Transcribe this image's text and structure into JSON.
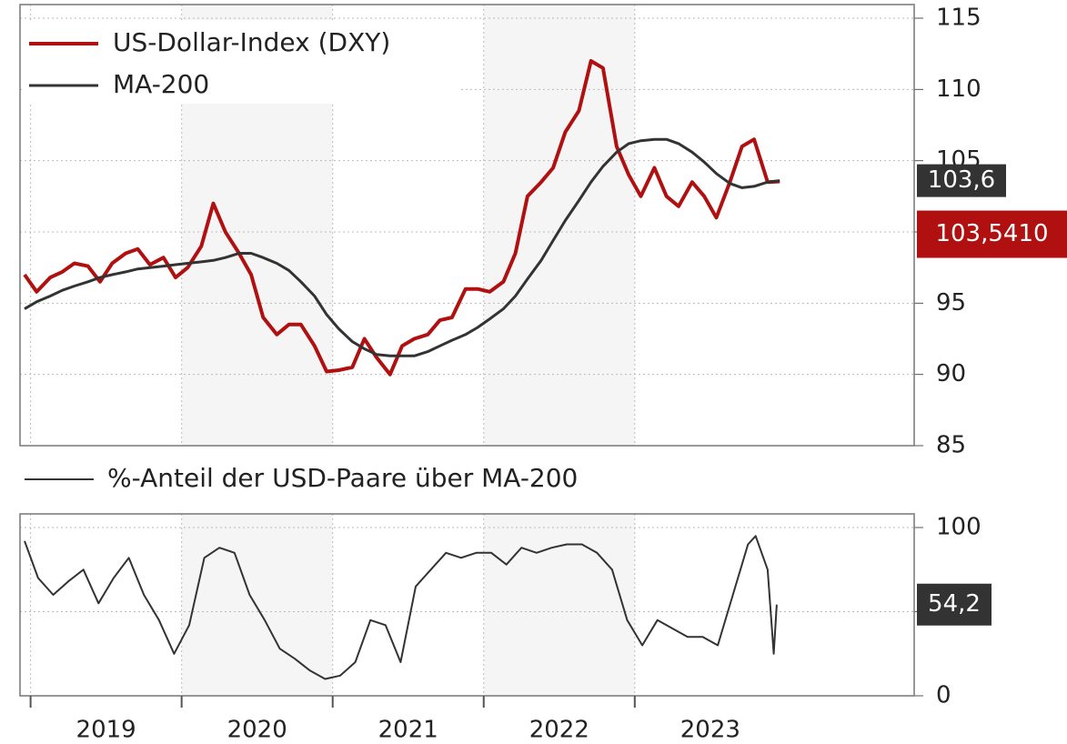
{
  "chart_data": [
    {
      "type": "line",
      "ylim": [
        85,
        115
      ],
      "yticks": [
        85,
        90,
        95,
        100,
        105,
        110,
        115
      ],
      "xlim": [
        2018.93,
        2024.85
      ],
      "grid": true,
      "legend": "upper left",
      "x": [
        2018.96,
        2019.04,
        2019.13,
        2019.21,
        2019.29,
        2019.38,
        2019.46,
        2019.54,
        2019.63,
        2019.71,
        2019.79,
        2019.88,
        2019.96,
        2020.04,
        2020.13,
        2020.21,
        2020.29,
        2020.38,
        2020.46,
        2020.54,
        2020.63,
        2020.71,
        2020.79,
        2020.88,
        2020.96,
        2021.04,
        2021.13,
        2021.21,
        2021.29,
        2021.38,
        2021.46,
        2021.54,
        2021.63,
        2021.71,
        2021.79,
        2021.88,
        2021.96,
        2022.04,
        2022.13,
        2022.21,
        2022.29,
        2022.38,
        2022.46,
        2022.54,
        2022.63,
        2022.71,
        2022.79,
        2022.88,
        2022.96,
        2023.04,
        2023.13,
        2023.21,
        2023.29,
        2023.38,
        2023.46,
        2023.54,
        2023.63,
        2023.71,
        2023.79,
        2023.88,
        2023.96
      ],
      "series": [
        {
          "name": "US-Dollar-Index (DXY)",
          "color": "#b01010",
          "end_label": "103,5410",
          "values": [
            97.0,
            95.8,
            96.8,
            97.2,
            97.8,
            97.6,
            96.5,
            97.8,
            98.5,
            98.8,
            97.7,
            98.2,
            96.8,
            97.5,
            99.0,
            102.0,
            100.0,
            98.5,
            97.0,
            94.0,
            92.8,
            93.5,
            93.5,
            92.0,
            90.2,
            90.3,
            90.5,
            92.5,
            91.2,
            90.0,
            92.0,
            92.5,
            92.8,
            93.8,
            94.0,
            96.0,
            96.0,
            95.8,
            96.5,
            98.5,
            102.5,
            103.5,
            104.5,
            107.0,
            108.5,
            112.0,
            111.5,
            106.0,
            104.0,
            102.5,
            104.5,
            102.5,
            101.8,
            103.5,
            102.5,
            101.0,
            103.5,
            106.0,
            106.5,
            103.5,
            103.541
          ]
        },
        {
          "name": "MA-200",
          "color": "#333333",
          "end_label": "103,6",
          "values": [
            94.6,
            95.1,
            95.5,
            95.9,
            96.2,
            96.5,
            96.8,
            97.0,
            97.2,
            97.4,
            97.5,
            97.6,
            97.7,
            97.8,
            97.9,
            98.0,
            98.2,
            98.5,
            98.5,
            98.2,
            97.8,
            97.3,
            96.5,
            95.5,
            94.2,
            93.2,
            92.3,
            91.8,
            91.4,
            91.3,
            91.3,
            91.3,
            91.6,
            92.0,
            92.4,
            92.8,
            93.3,
            93.9,
            94.6,
            95.5,
            96.7,
            98.0,
            99.4,
            100.8,
            102.2,
            103.5,
            104.6,
            105.6,
            106.2,
            106.4,
            106.5,
            106.5,
            106.2,
            105.6,
            104.9,
            104.1,
            103.4,
            103.1,
            103.2,
            103.5,
            103.6
          ]
        }
      ]
    },
    {
      "type": "line",
      "ylim": [
        0,
        100
      ],
      "yticks": [
        0,
        50,
        100
      ],
      "xlim": [
        2018.93,
        2024.85
      ],
      "grid": true,
      "xticks": [
        {
          "value": 2019,
          "label": "2019"
        },
        {
          "value": 2020,
          "label": "2020"
        },
        {
          "value": 2021,
          "label": "2021"
        },
        {
          "value": 2022,
          "label": "2022"
        },
        {
          "value": 2023,
          "label": "2023"
        }
      ],
      "x": [
        2018.96,
        2019.05,
        2019.15,
        2019.25,
        2019.35,
        2019.45,
        2019.55,
        2019.65,
        2019.75,
        2019.85,
        2019.95,
        2020.05,
        2020.15,
        2020.25,
        2020.35,
        2020.45,
        2020.55,
        2020.65,
        2020.75,
        2020.85,
        2020.95,
        2021.05,
        2021.15,
        2021.25,
        2021.35,
        2021.45,
        2021.55,
        2021.65,
        2021.75,
        2021.85,
        2021.95,
        2022.05,
        2022.15,
        2022.25,
        2022.35,
        2022.45,
        2022.55,
        2022.65,
        2022.75,
        2022.85,
        2022.95,
        2023.05,
        2023.15,
        2023.25,
        2023.35,
        2023.45,
        2023.55,
        2023.65,
        2023.75,
        2023.8,
        2023.88,
        2023.92,
        2023.94
      ],
      "series": [
        {
          "name": "%-Anteil der USD-Paare über MA-200",
          "color": "#333333",
          "end_label": "54,2",
          "values": [
            92,
            70,
            60,
            68,
            75,
            55,
            70,
            82,
            60,
            45,
            25,
            42,
            82,
            88,
            85,
            60,
            45,
            28,
            22,
            15,
            10,
            12,
            20,
            45,
            42,
            20,
            65,
            75,
            85,
            82,
            85,
            85,
            78,
            88,
            85,
            88,
            90,
            90,
            85,
            75,
            45,
            30,
            45,
            40,
            35,
            35,
            30,
            60,
            90,
            95,
            75,
            25,
            54.2
          ]
        }
      ]
    }
  ]
}
